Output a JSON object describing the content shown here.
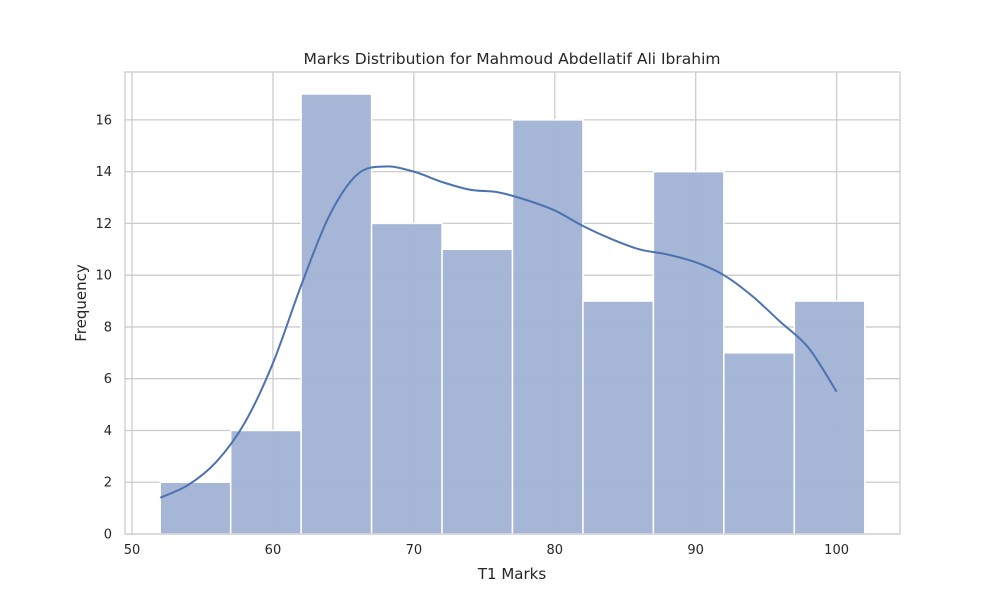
{
  "chart_data": {
    "type": "bar",
    "title": "Marks Distribution for Mahmoud Abdellatif Ali Ibrahim",
    "xlabel": "T1 Marks",
    "ylabel": "Frequency",
    "xlim": [
      49.5,
      104.5
    ],
    "ylim": [
      0,
      17.85
    ],
    "xticks": [
      50,
      60,
      70,
      80,
      90,
      100
    ],
    "yticks": [
      0,
      2,
      4,
      6,
      8,
      10,
      12,
      14,
      16
    ],
    "grid": true,
    "bins": [
      {
        "start": 52,
        "end": 57,
        "count": 2
      },
      {
        "start": 57,
        "end": 62,
        "count": 4
      },
      {
        "start": 62,
        "end": 67,
        "count": 17
      },
      {
        "start": 67,
        "end": 72,
        "count": 12
      },
      {
        "start": 72,
        "end": 77,
        "count": 11
      },
      {
        "start": 77,
        "end": 82,
        "count": 16
      },
      {
        "start": 82,
        "end": 87,
        "count": 9
      },
      {
        "start": 87,
        "end": 92,
        "count": 14
      },
      {
        "start": 92,
        "end": 97,
        "count": 7
      },
      {
        "start": 97,
        "end": 102,
        "count": 9
      }
    ],
    "kde": {
      "x": [
        52,
        54,
        56,
        58,
        60,
        62,
        64,
        66,
        68,
        70,
        72,
        74,
        76,
        78,
        80,
        82,
        84,
        86,
        88,
        90,
        92,
        94,
        96,
        98,
        100
      ],
      "y": [
        1.4,
        1.9,
        2.8,
        4.3,
        6.6,
        9.6,
        12.3,
        13.9,
        14.2,
        14.0,
        13.6,
        13.3,
        13.2,
        12.9,
        12.5,
        11.9,
        11.4,
        11.0,
        10.8,
        10.5,
        10.0,
        9.2,
        8.2,
        7.2,
        5.5
      ]
    },
    "colors": {
      "bar_fill": "#a2b4d6",
      "bar_stroke": "#ffffff",
      "kde_line": "#4c72b0",
      "grid": "#cccccc",
      "spine": "#cccccc"
    }
  }
}
